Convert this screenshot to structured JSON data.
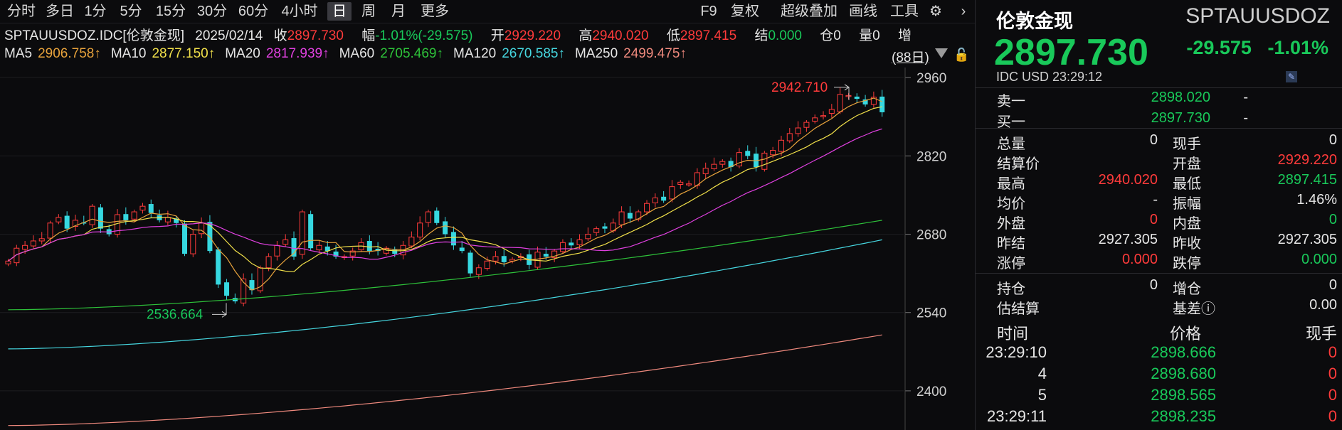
{
  "toolbar": {
    "periods": [
      "分时",
      "多日",
      "1分",
      "5分",
      "15分",
      "30分",
      "60分",
      "4小时",
      "日",
      "周",
      "月",
      "更多"
    ],
    "active": "日",
    "right_items": [
      "F9",
      "复权",
      "超级叠加",
      "画线",
      "工具"
    ],
    "gear_icon": "gear-icon",
    "chevron_icon": "chevron-right-icon"
  },
  "quote_line": {
    "symbol": "SPTAUUSDOZ.IDC[伦敦金现]",
    "date": "2025/02/14",
    "close_label": "收",
    "close": "2897.730",
    "amp_label": "幅",
    "amp": "-1.01%(-29.575)",
    "open_label": "开",
    "open": "2929.220",
    "high_label": "高",
    "high": "2940.020",
    "low_label": "低",
    "low": "2897.415",
    "settle_label": "结",
    "settle": "0.000",
    "pos_label": "仓",
    "pos": "0",
    "vol_label": "量",
    "vol": "0",
    "inc_label": "增"
  },
  "ma_line": [
    {
      "label": "MA5",
      "value": "2906.758↑",
      "color": "#e8a33c"
    },
    {
      "label": "MA10",
      "value": "2877.150↑",
      "color": "#f1e04a"
    },
    {
      "label": "MA20",
      "value": "2817.939↑",
      "color": "#e040e0"
    },
    {
      "label": "MA60",
      "value": "2705.469↑",
      "color": "#2ec23a"
    },
    {
      "label": "MA120",
      "value": "2670.585↑",
      "color": "#46d7e0"
    },
    {
      "label": "MA250",
      "value": "2499.475↑",
      "color": "#f08a7e"
    }
  ],
  "days_label": "(88日)",
  "chart_data": {
    "type": "candlestick",
    "y_ticks": [
      "2960",
      "2820",
      "2680",
      "2540",
      "2400"
    ],
    "ylim": [
      2330,
      2978
    ],
    "high_annotation": "2942.710",
    "low_annotation": "2536.664",
    "candles_close": [
      2632,
      2655,
      2660,
      2668,
      2672,
      2700,
      2710,
      2690,
      2705,
      2700,
      2730,
      2690,
      2680,
      2715,
      2705,
      2720,
      2730,
      2718,
      2705,
      2710,
      2700,
      2645,
      2680,
      2700,
      2650,
      2590,
      2570,
      2560,
      2600,
      2580,
      2620,
      2640,
      2660,
      2670,
      2640,
      2720,
      2655,
      2660,
      2650,
      2640,
      2640,
      2650,
      2665,
      2650,
      2650,
      2655,
      2645,
      2660,
      2675,
      2700,
      2720,
      2700,
      2680,
      2660,
      2650,
      2610,
      2620,
      2632,
      2640,
      2630,
      2635,
      2640,
      2625,
      2648,
      2640,
      2650,
      2665,
      2660,
      2670,
      2680,
      2690,
      2690,
      2700,
      2720,
      2708,
      2720,
      2735,
      2745,
      2740,
      2765,
      2773,
      2770,
      2790,
      2798,
      2805,
      2810,
      2800,
      2826,
      2820,
      2800,
      2825,
      2830,
      2848,
      2860,
      2870,
      2880,
      2888,
      2892,
      2903,
      2930,
      2928,
      2922,
      2912,
      2925,
      2898
    ]
  },
  "right": {
    "name": "伦敦金现",
    "code": "SPTAUUSDOZ",
    "price": "2897.730",
    "change": "-29.575",
    "change_pct": "-1.01%",
    "sub": "IDC  USD  23:29:12",
    "bidask": [
      {
        "label": "卖一",
        "price": "2898.020",
        "vol": "-"
      },
      {
        "label": "买一",
        "price": "2897.730",
        "vol": "-"
      }
    ],
    "stats": [
      {
        "l1": "总量",
        "v1": "0",
        "c1": "white",
        "l2": "现手",
        "v2": "0",
        "c2": "white"
      },
      {
        "l1": "结算价",
        "v1": "",
        "c1": "white",
        "l2": "开盘",
        "v2": "2929.220",
        "c2": "red"
      },
      {
        "l1": "最高",
        "v1": "2940.020",
        "c1": "red",
        "l2": "最低",
        "v2": "2897.415",
        "c2": "green"
      },
      {
        "l1": "均价",
        "v1": "-",
        "c1": "white",
        "l2": "振幅",
        "v2": "1.46%",
        "c2": "white"
      },
      {
        "l1": "外盘",
        "v1": "0",
        "c1": "red",
        "l2": "内盘",
        "v2": "0",
        "c2": "green"
      },
      {
        "l1": "昨结",
        "v1": "2927.305",
        "c1": "white",
        "l2": "昨收",
        "v2": "2927.305",
        "c2": "white"
      },
      {
        "l1": "涨停",
        "v1": "0.000",
        "c1": "red",
        "l2": "跌停",
        "v2": "0.000",
        "c2": "green"
      }
    ],
    "stats2": [
      {
        "l1": "持仓",
        "v1": "0",
        "c1": "white",
        "l2": "增仓",
        "v2": "0",
        "c2": "white"
      },
      {
        "l1": "估结算",
        "v1": "",
        "c1": "white",
        "l2": "基差ⓘ",
        "v2": "0.00",
        "c2": "white"
      }
    ],
    "trades_header": {
      "time": "时间",
      "price": "价格",
      "vol": "现手"
    },
    "trades": [
      {
        "time": "23:29:10",
        "price": "2898.666",
        "vol": "0"
      },
      {
        "time": "4",
        "price": "2898.680",
        "vol": "0"
      },
      {
        "time": "5",
        "price": "2898.565",
        "vol": "0"
      },
      {
        "time": "23:29:11",
        "price": "2898.235",
        "vol": "0"
      }
    ]
  }
}
